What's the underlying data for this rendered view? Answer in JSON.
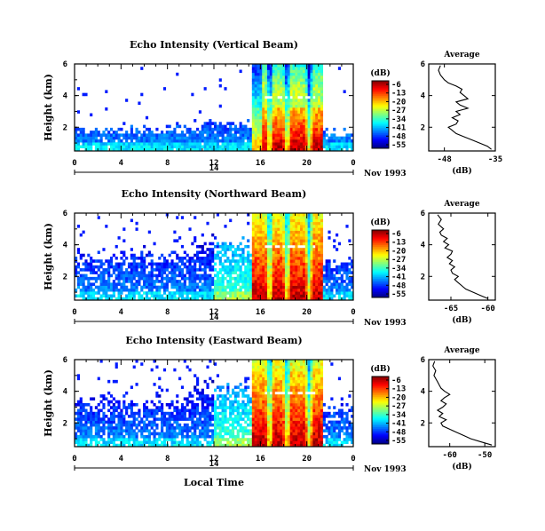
{
  "chart_data": [
    {
      "type": "heatmap",
      "title": "Echo Intensity (Vertical Beam)",
      "ylabel": "Height (km)",
      "xlabel": "",
      "x_ticks": [
        "0",
        "4",
        "8",
        "12",
        "16",
        "20",
        "0"
      ],
      "y_ticks": [
        "2",
        "4",
        "6"
      ],
      "xlim": [
        0,
        24
      ],
      "ylim": [
        0.5,
        6
      ],
      "date_ticks": [
        "14"
      ],
      "date_label": "Nov 1993",
      "colorbar": {
        "unit": "(dB)",
        "ticks": [
          "-6",
          "-13",
          "-20",
          "-27",
          "-34",
          "-41",
          "-48",
          "-55"
        ]
      },
      "profile": {
        "title": "Average",
        "xlabel": "(dB)",
        "x_ticks": [
          "-48",
          "-35"
        ],
        "y_ticks": [
          "2",
          "4",
          "6"
        ],
        "xlim": [
          -52,
          -35
        ],
        "ylim": [
          0.5,
          6
        ],
        "points": [
          {
            "h": 0.6,
            "v": -36
          },
          {
            "h": 0.8,
            "v": -37
          },
          {
            "h": 1.0,
            "v": -39
          },
          {
            "h": 1.2,
            "v": -41
          },
          {
            "h": 1.4,
            "v": -43
          },
          {
            "h": 1.6,
            "v": -45
          },
          {
            "h": 1.8,
            "v": -46
          },
          {
            "h": 2.0,
            "v": -47
          },
          {
            "h": 2.2,
            "v": -45
          },
          {
            "h": 2.4,
            "v": -44.5
          },
          {
            "h": 2.6,
            "v": -46
          },
          {
            "h": 2.8,
            "v": -44
          },
          {
            "h": 3.0,
            "v": -45
          },
          {
            "h": 3.2,
            "v": -42
          },
          {
            "h": 3.4,
            "v": -44
          },
          {
            "h": 3.6,
            "v": -45
          },
          {
            "h": 3.8,
            "v": -42
          },
          {
            "h": 4.0,
            "v": -43
          },
          {
            "h": 4.2,
            "v": -44
          },
          {
            "h": 4.4,
            "v": -43.5
          },
          {
            "h": 4.6,
            "v": -45
          },
          {
            "h": 4.8,
            "v": -47
          },
          {
            "h": 5.0,
            "v": -48
          },
          {
            "h": 5.3,
            "v": -49
          },
          {
            "h": 5.6,
            "v": -49.5
          },
          {
            "h": 5.9,
            "v": -49
          }
        ]
      }
    },
    {
      "type": "heatmap",
      "title": "Echo Intensity (Northward Beam)",
      "ylabel": "Height (km)",
      "xlabel": "",
      "x_ticks": [
        "0",
        "4",
        "8",
        "12",
        "16",
        "20",
        "0"
      ],
      "y_ticks": [
        "2",
        "4",
        "6"
      ],
      "xlim": [
        0,
        24
      ],
      "ylim": [
        0.5,
        6
      ],
      "date_ticks": [
        "14"
      ],
      "date_label": "Nov 1993",
      "colorbar": {
        "unit": "(dB)",
        "ticks": [
          "-6",
          "-13",
          "-20",
          "-27",
          "-34",
          "-41",
          "-48",
          "-55"
        ]
      },
      "profile": {
        "title": "Average",
        "xlabel": "(dB)",
        "x_ticks": [
          "-65",
          "-60"
        ],
        "y_ticks": [
          "2",
          "4",
          "6"
        ],
        "xlim": [
          -68,
          -59
        ],
        "ylim": [
          0.5,
          6
        ],
        "points": [
          {
            "h": 0.6,
            "v": -60
          },
          {
            "h": 0.8,
            "v": -61
          },
          {
            "h": 1.0,
            "v": -62
          },
          {
            "h": 1.2,
            "v": -63
          },
          {
            "h": 1.4,
            "v": -63.5
          },
          {
            "h": 1.6,
            "v": -64
          },
          {
            "h": 1.8,
            "v": -64.5
          },
          {
            "h": 2.0,
            "v": -64
          },
          {
            "h": 2.2,
            "v": -64.8
          },
          {
            "h": 2.4,
            "v": -65
          },
          {
            "h": 2.6,
            "v": -64.5
          },
          {
            "h": 2.8,
            "v": -65.2
          },
          {
            "h": 3.0,
            "v": -64.8
          },
          {
            "h": 3.2,
            "v": -65.5
          },
          {
            "h": 3.4,
            "v": -65
          },
          {
            "h": 3.6,
            "v": -64.8
          },
          {
            "h": 3.8,
            "v": -65.8
          },
          {
            "h": 4.0,
            "v": -65.3
          },
          {
            "h": 4.2,
            "v": -66
          },
          {
            "h": 4.4,
            "v": -65.5
          },
          {
            "h": 4.6,
            "v": -66.3
          },
          {
            "h": 4.8,
            "v": -66.5
          },
          {
            "h": 5.0,
            "v": -66
          },
          {
            "h": 5.3,
            "v": -66.7
          },
          {
            "h": 5.6,
            "v": -66.3
          },
          {
            "h": 5.9,
            "v": -66.8
          }
        ]
      }
    },
    {
      "type": "heatmap",
      "title": "Echo Intensity (Eastward Beam)",
      "ylabel": "Height (km)",
      "xlabel": "Local Time",
      "x_ticks": [
        "0",
        "4",
        "8",
        "12",
        "16",
        "20",
        "0"
      ],
      "y_ticks": [
        "2",
        "4",
        "6"
      ],
      "xlim": [
        0,
        24
      ],
      "ylim": [
        0.5,
        6
      ],
      "date_ticks": [
        "14"
      ],
      "date_label": "Nov 1993",
      "colorbar": {
        "unit": "(dB)",
        "ticks": [
          "-6",
          "-13",
          "-20",
          "-27",
          "-34",
          "-41",
          "-48",
          "-55"
        ]
      },
      "profile": {
        "title": "Average",
        "xlabel": "(dB)",
        "x_ticks": [
          "-60",
          "-50"
        ],
        "y_ticks": [
          "2",
          "4",
          "6"
        ],
        "xlim": [
          -66,
          -47
        ],
        "ylim": [
          0.5,
          6
        ],
        "points": [
          {
            "h": 0.6,
            "v": -48
          },
          {
            "h": 0.8,
            "v": -51
          },
          {
            "h": 1.0,
            "v": -54
          },
          {
            "h": 1.2,
            "v": -56
          },
          {
            "h": 1.4,
            "v": -58
          },
          {
            "h": 1.6,
            "v": -60
          },
          {
            "h": 1.8,
            "v": -62
          },
          {
            "h": 2.0,
            "v": -62.5
          },
          {
            "h": 2.2,
            "v": -61
          },
          {
            "h": 2.4,
            "v": -63
          },
          {
            "h": 2.6,
            "v": -62
          },
          {
            "h": 2.8,
            "v": -63.5
          },
          {
            "h": 3.0,
            "v": -62
          },
          {
            "h": 3.2,
            "v": -61
          },
          {
            "h": 3.4,
            "v": -62.5
          },
          {
            "h": 3.6,
            "v": -61.5
          },
          {
            "h": 3.8,
            "v": -60
          },
          {
            "h": 4.0,
            "v": -61.5
          },
          {
            "h": 4.2,
            "v": -62.5
          },
          {
            "h": 4.4,
            "v": -63
          },
          {
            "h": 4.6,
            "v": -63.5
          },
          {
            "h": 4.8,
            "v": -64
          },
          {
            "h": 5.0,
            "v": -64.5
          },
          {
            "h": 5.3,
            "v": -64
          },
          {
            "h": 5.6,
            "v": -64.8
          },
          {
            "h": 5.9,
            "v": -64.3
          }
        ]
      }
    }
  ]
}
